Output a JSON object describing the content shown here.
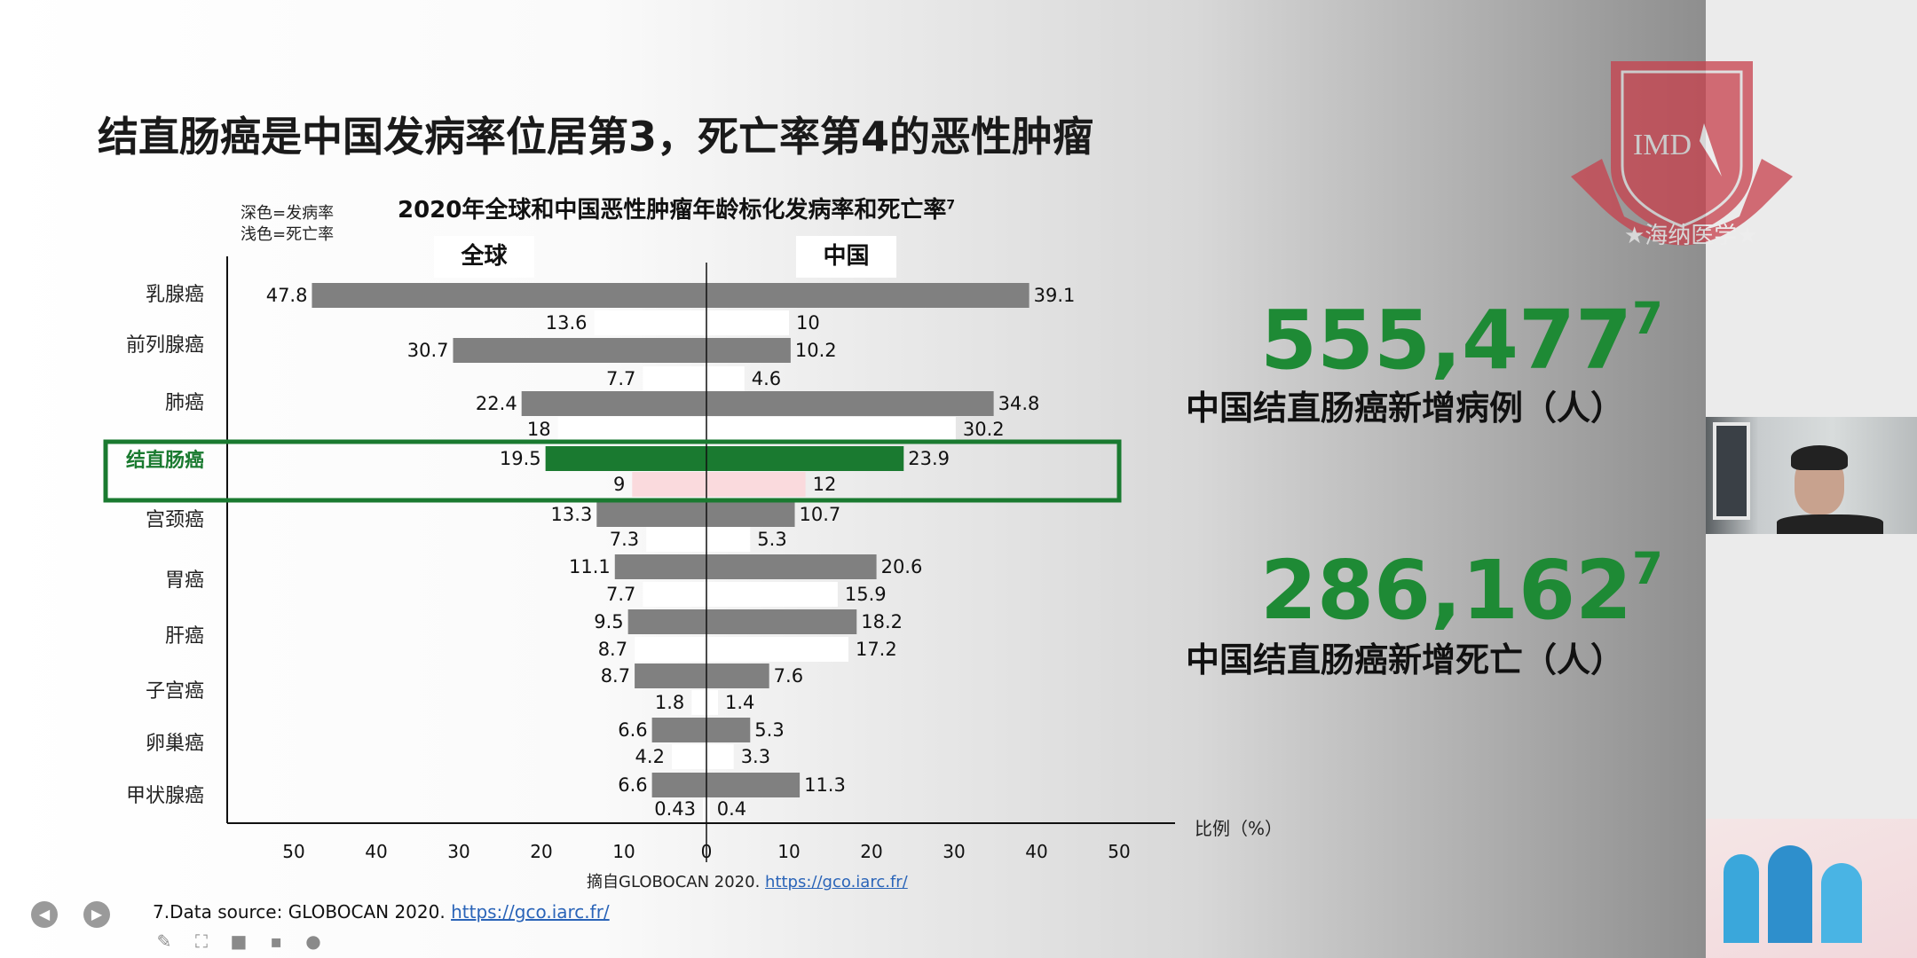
{
  "slide": {
    "title": "结直肠癌是中国发病率位居第3，死亡率第4的恶性肿瘤",
    "legend_dark": "深色=发病率",
    "legend_light": "浅色=死亡率",
    "stat1": {
      "value": "555,477",
      "sup": "7",
      "label": "中国结直肠癌新增病例（人）"
    },
    "stat2": {
      "value": "286,162",
      "sup": "7",
      "label": "中国结直肠癌新增死亡（人）"
    },
    "source_prefix": "摘自GLOBOCAN 2020. ",
    "source_link": "https://gco.iarc.fr/",
    "footnote_prefix": "7.Data source: GLOBOCAN 2020. ",
    "footnote_link": "https://gco.iarc.fr/",
    "logo_text": "IMD",
    "logo_banner": "★海纳医学★"
  },
  "colors": {
    "incidence": "#808080",
    "death": "#ffffff",
    "highlight": "#1a7a30",
    "highlight_death": "#fadadd",
    "stat": "#1e8a35"
  },
  "chart_data": {
    "type": "bar",
    "orientation": "horizontal-diverging",
    "title": "2020年全球和中国恶性肿瘤年龄标化发病率和死亡率",
    "title_sup": "7",
    "left_group": "全球",
    "right_group": "中国",
    "xlabel": "比例（%）",
    "xlim": [
      -50,
      50
    ],
    "xticks": [
      "50",
      "40",
      "30",
      "20",
      "10",
      "0",
      "10",
      "20",
      "30",
      "40",
      "50"
    ],
    "highlight": "结直肠癌",
    "categories": [
      "乳腺癌",
      "前列腺癌",
      "肺癌",
      "结直肠癌",
      "宫颈癌",
      "胃癌",
      "肝癌",
      "子宫癌",
      "卵巢癌",
      "甲状腺癌"
    ],
    "series": [
      {
        "name": "全球 发病率",
        "values": [
          47.8,
          30.7,
          22.4,
          19.5,
          13.3,
          11.1,
          9.5,
          8.7,
          6.6,
          6.6
        ]
      },
      {
        "name": "中国 发病率",
        "values": [
          39.1,
          10.2,
          34.8,
          23.9,
          10.7,
          20.6,
          18.2,
          7.6,
          5.3,
          11.3
        ]
      },
      {
        "name": "全球 死亡率",
        "values": [
          13.6,
          7.7,
          18,
          9,
          7.3,
          7.7,
          8.7,
          1.8,
          4.2,
          0.43
        ]
      },
      {
        "name": "中国 死亡率",
        "values": [
          10,
          4.6,
          30.2,
          12,
          5.3,
          15.9,
          17.2,
          1.4,
          3.3,
          0.4
        ]
      }
    ]
  },
  "toolbar": {
    "prev_icon": "chevron-left-icon",
    "next_icon": "chevron-right-icon",
    "tools": [
      "pen-icon",
      "fullscreen-icon",
      "camera-icon",
      "chat-icon",
      "more-icon"
    ]
  }
}
